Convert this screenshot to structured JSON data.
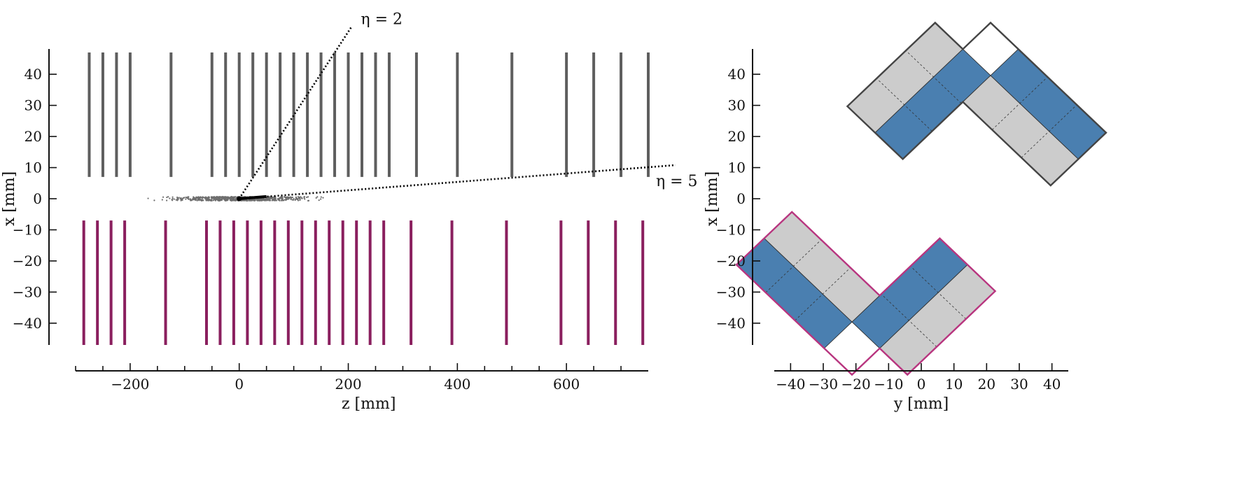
{
  "chart_data": [
    {
      "type": "scatter",
      "title": "",
      "xlabel": "z [mm]",
      "ylabel": "x [mm]",
      "xlim": [
        -300,
        750
      ],
      "ylim": [
        -47,
        47
      ],
      "x_ticks": [
        -200,
        0,
        200,
        400,
        600
      ],
      "x_minor_ticks": [
        -300,
        -250,
        -150,
        -100,
        -50,
        50,
        100,
        150,
        250,
        300,
        350,
        450,
        500,
        550,
        650,
        700
      ],
      "y_ticks": [
        -40,
        -30,
        -20,
        -10,
        0,
        10,
        20,
        30,
        40
      ],
      "grid": false,
      "series": [
        {
          "color": "#5e5e5e",
          "y_range": [
            7,
            47
          ],
          "z_positions": [
            -275,
            -250,
            -225,
            -200,
            -125,
            -50,
            -25,
            0,
            25,
            50,
            75,
            100,
            125,
            150,
            175,
            200,
            225,
            250,
            275,
            325,
            400,
            500,
            600,
            650,
            700,
            750
          ]
        },
        {
          "color": "#8a1f5e",
          "y_range": [
            -47,
            -7
          ],
          "z_positions": [
            -285,
            -260,
            -235,
            -210,
            -135,
            -60,
            -35,
            -10,
            15,
            40,
            65,
            90,
            115,
            140,
            165,
            190,
            215,
            240,
            265,
            315,
            390,
            490,
            590,
            640,
            690,
            740
          ]
        }
      ],
      "vertex_spread": {
        "z_range": [
          -240,
          250
        ],
        "x_center": 0,
        "color": "#6e6e6e"
      },
      "eta_lines": [
        {
          "label": "η = 2",
          "from": [
            0,
            0
          ],
          "to": [
            205,
            55
          ]
        },
        {
          "label": "η = 5",
          "from": [
            0,
            0
          ],
          "to": [
            800,
            10.8
          ]
        }
      ]
    },
    {
      "type": "diagram",
      "title": "",
      "xlabel": "y [mm]",
      "ylabel": "x [mm]",
      "xlim": [
        -45,
        45
      ],
      "ylim": [
        -47,
        47
      ],
      "x_ticks": [
        -40,
        -30,
        -20,
        -10,
        0,
        10,
        20,
        30,
        40
      ],
      "y_ticks": [
        -40,
        -30,
        -20,
        -10,
        0,
        10,
        20,
        30,
        40
      ],
      "grid": false,
      "colors": {
        "sensor": "#cccccc",
        "active": "#4a7fb0",
        "outline_a": "#444444",
        "outline_b": "#b8357f"
      }
    }
  ]
}
